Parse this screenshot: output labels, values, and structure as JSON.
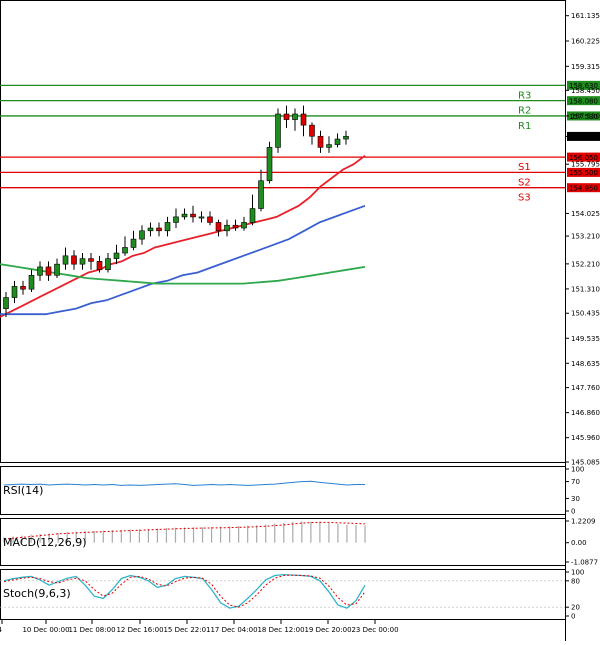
{
  "chart_data": {
    "type": "candlestick",
    "symbol_timeframe": "H4",
    "price_axis": {
      "ymin": 145.085,
      "ymax": 161.7,
      "ticks": [
        "161.135",
        "160.225",
        "159.315",
        "158.450",
        "157.530",
        "156.794",
        "155.795",
        "154.025",
        "153.210",
        "152.210",
        "151.310",
        "150.435",
        "149.535",
        "148.635",
        "147.760",
        "146.860",
        "145.960",
        "145.085"
      ],
      "tick_values": [
        161.135,
        160.225,
        159.315,
        158.45,
        157.53,
        156.794,
        155.795,
        154.025,
        153.21,
        152.21,
        151.31,
        150.435,
        149.535,
        148.635,
        147.76,
        146.86,
        145.96,
        145.085
      ]
    },
    "time_axis": {
      "labels": [
        "9 Dec 2024",
        "10 Dec 00:00",
        "11 Dec 08:00",
        "12 Dec 16:00",
        "15 Dec 22:01",
        "17 Dec 04:00",
        "18 Dec 12:00",
        "19 Dec 20:00",
        "23 Dec 00:00"
      ]
    },
    "current_price": {
      "value": 156.794,
      "label": "156.794"
    },
    "levels": [
      {
        "name": "R3",
        "value": 158.63,
        "label": "158.630",
        "color": "#1e8c1e"
      },
      {
        "name": "R2",
        "value": 158.08,
        "label": "158.080",
        "color": "#1e8c1e"
      },
      {
        "name": "R1",
        "value": 157.53,
        "label": "157.530",
        "color": "#1e8c1e"
      },
      {
        "name": "S1",
        "value": 156.05,
        "label": "156.050",
        "color": "#e00000"
      },
      {
        "name": "S2",
        "value": 155.5,
        "label": "155.500",
        "color": "#e00000"
      },
      {
        "name": "S3",
        "value": 154.95,
        "label": "154.950",
        "color": "#e00000"
      }
    ],
    "candles": [
      [
        150.6,
        151.0,
        150.3,
        151.2
      ],
      [
        151.0,
        151.4,
        150.8,
        151.6
      ],
      [
        151.4,
        151.3,
        151.1,
        151.6
      ],
      [
        151.3,
        151.8,
        151.2,
        152.0
      ],
      [
        151.8,
        152.1,
        151.6,
        152.3
      ],
      [
        152.1,
        151.8,
        151.6,
        152.3
      ],
      [
        151.8,
        152.2,
        151.7,
        152.4
      ],
      [
        152.2,
        152.5,
        152.0,
        152.8
      ],
      [
        152.5,
        152.2,
        152.0,
        152.7
      ],
      [
        152.2,
        152.4,
        152.0,
        152.6
      ],
      [
        152.4,
        152.3,
        152.0,
        152.6
      ],
      [
        152.3,
        152.0,
        151.9,
        152.5
      ],
      [
        152.0,
        152.4,
        151.9,
        152.6
      ],
      [
        152.4,
        152.6,
        152.2,
        152.9
      ],
      [
        152.6,
        152.8,
        152.5,
        153.2
      ],
      [
        152.8,
        153.1,
        152.7,
        153.4
      ],
      [
        153.1,
        153.4,
        152.9,
        153.6
      ],
      [
        153.4,
        153.5,
        153.2,
        153.7
      ],
      [
        153.5,
        153.4,
        153.2,
        153.7
      ],
      [
        153.4,
        153.7,
        153.2,
        153.9
      ],
      [
        153.7,
        153.9,
        153.5,
        154.2
      ],
      [
        153.9,
        154.0,
        153.8,
        154.2
      ],
      [
        154.0,
        153.9,
        153.7,
        154.3
      ],
      [
        153.9,
        153.9,
        153.7,
        154.1
      ],
      [
        153.9,
        153.7,
        153.6,
        154.1
      ],
      [
        153.7,
        153.4,
        153.2,
        153.8
      ],
      [
        153.4,
        153.6,
        153.2,
        153.8
      ],
      [
        153.6,
        153.5,
        153.4,
        153.8
      ],
      [
        153.5,
        153.7,
        153.4,
        153.9
      ],
      [
        153.7,
        154.2,
        153.6,
        154.7
      ],
      [
        154.2,
        155.2,
        154.1,
        155.6
      ],
      [
        155.2,
        156.4,
        155.1,
        156.6
      ],
      [
        156.4,
        157.6,
        156.2,
        157.8
      ],
      [
        157.6,
        157.4,
        157.1,
        157.9
      ],
      [
        157.4,
        157.6,
        157.0,
        157.8
      ],
      [
        157.6,
        157.2,
        156.8,
        157.9
      ],
      [
        157.2,
        156.8,
        156.5,
        157.3
      ],
      [
        156.8,
        156.4,
        156.2,
        157.0
      ],
      [
        156.4,
        156.5,
        156.2,
        156.8
      ],
      [
        156.5,
        156.7,
        156.4,
        156.9
      ],
      [
        156.7,
        156.8,
        156.5,
        157.0
      ]
    ],
    "moving_averages": [
      {
        "name": "MA red",
        "color": "#e8202a",
        "values": [
          150.3,
          150.5,
          150.7,
          150.9,
          151.1,
          151.3,
          151.5,
          151.7,
          151.9,
          152.0,
          152.2,
          152.3,
          152.5,
          152.6,
          152.8,
          152.9,
          153.0,
          153.1,
          153.2,
          153.3,
          153.4,
          153.5,
          153.6,
          153.7,
          153.8,
          153.9,
          154.1,
          154.3,
          154.6,
          155.0,
          155.3,
          155.6,
          155.8,
          156.1
        ]
      },
      {
        "name": "MA blue",
        "color": "#3a5fd0",
        "values": [
          150.4,
          150.4,
          150.4,
          150.4,
          150.5,
          150.6,
          150.8,
          150.9,
          151.1,
          151.3,
          151.5,
          151.6,
          151.8,
          151.9,
          152.1,
          152.3,
          152.5,
          152.7,
          152.9,
          153.1,
          153.4,
          153.7,
          153.9,
          154.1,
          154.3
        ]
      },
      {
        "name": "MA green",
        "color": "#2ea84a",
        "values": [
          152.2,
          152.1,
          152.0,
          151.9,
          151.8,
          151.7,
          151.65,
          151.6,
          151.55,
          151.5,
          151.5,
          151.5,
          151.5,
          151.5,
          151.5,
          151.55,
          151.6,
          151.7,
          151.8,
          151.9,
          152.0,
          152.1
        ]
      }
    ],
    "indicators": [
      {
        "name": "RSI(14)",
        "label": "RSI(14)",
        "axis_labels": [
          "100",
          "70",
          "30",
          "0"
        ],
        "axis_values": [
          100,
          70,
          30,
          0
        ],
        "values": [
          62,
          63,
          64,
          63,
          64,
          62,
          63,
          64,
          63,
          62,
          63,
          62,
          63,
          61,
          62,
          61,
          62,
          63,
          64,
          65,
          63,
          61,
          62,
          63,
          62,
          63,
          62,
          61,
          62,
          63,
          64,
          66,
          68,
          70,
          71,
          68,
          66,
          64,
          62,
          63,
          63
        ]
      },
      {
        "name": "MACD(12,26,9)",
        "label": "MACD(12,26,9)",
        "axis_labels": [
          "1.2209",
          "0.00",
          "-1.0877"
        ],
        "axis_values": [
          1.2209,
          0,
          -1.0877
        ],
        "histogram": [
          0.3,
          0.35,
          0.4,
          0.45,
          0.5,
          0.52,
          0.55,
          0.6,
          0.62,
          0.65,
          0.66,
          0.68,
          0.7,
          0.72,
          0.74,
          0.76,
          0.78,
          0.8,
          0.82,
          0.84,
          0.86,
          0.86,
          0.87,
          0.88,
          0.9,
          0.92,
          0.94,
          0.96,
          0.98,
          1.02,
          1.08,
          1.12,
          1.18,
          1.2,
          1.18,
          1.15,
          1.1,
          1.05,
          1.0,
          0.98,
          0.97
        ],
        "signal": [
          0.2,
          0.25,
          0.3,
          0.35,
          0.4,
          0.45,
          0.5,
          0.52,
          0.55,
          0.58,
          0.6,
          0.62,
          0.64,
          0.66,
          0.68,
          0.7,
          0.72,
          0.74,
          0.76,
          0.78,
          0.8,
          0.81,
          0.82,
          0.83,
          0.84,
          0.85,
          0.86,
          0.88,
          0.9,
          0.93,
          0.96,
          1.0,
          1.05,
          1.1,
          1.13,
          1.15,
          1.14,
          1.12,
          1.1,
          1.08,
          1.06
        ]
      },
      {
        "name": "Stoch(9,6,3)",
        "label": "Stoch(9,6,3)",
        "axis_labels": [
          "100",
          "80",
          "20",
          "0"
        ],
        "axis_values": [
          100,
          80,
          20,
          0
        ],
        "k": [
          80,
          85,
          88,
          90,
          82,
          70,
          78,
          86,
          90,
          70,
          45,
          40,
          60,
          85,
          92,
          88,
          80,
          65,
          70,
          85,
          90,
          88,
          85,
          60,
          30,
          18,
          22,
          40,
          60,
          82,
          92,
          94,
          93,
          92,
          90,
          80,
          55,
          25,
          18,
          35,
          70
        ],
        "d": [
          78,
          82,
          86,
          88,
          85,
          78,
          75,
          82,
          86,
          80,
          60,
          45,
          52,
          72,
          88,
          90,
          84,
          72,
          68,
          78,
          86,
          88,
          86,
          72,
          45,
          25,
          20,
          30,
          48,
          70,
          86,
          92,
          93,
          92,
          91,
          86,
          68,
          42,
          25,
          28,
          55
        ]
      }
    ]
  }
}
